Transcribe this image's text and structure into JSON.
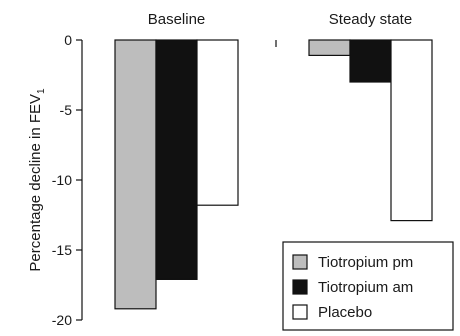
{
  "chart_data": {
    "type": "bar",
    "categories": [
      "Baseline",
      "Steady state"
    ],
    "series": [
      {
        "name": "Tiotropium pm",
        "values": [
          -19.2,
          -1.1
        ],
        "color": "#bdbdbd"
      },
      {
        "name": "Tiotropium am",
        "values": [
          -17.1,
          -3.0
        ],
        "color": "#111111"
      },
      {
        "name": "Placebo",
        "values": [
          -11.8,
          -12.9
        ],
        "color": "#ffffff"
      }
    ],
    "ylabel": "Percentage decline in FEV",
    "ylabel_subscript": "1",
    "ylim": [
      -20,
      0
    ],
    "yticks": [
      0,
      -5,
      -10,
      -15,
      -20
    ],
    "ytick_labels": [
      "0",
      "-5",
      "-10",
      "-15",
      "-20"
    ],
    "grid": false,
    "legend_position": "bottom-right"
  }
}
